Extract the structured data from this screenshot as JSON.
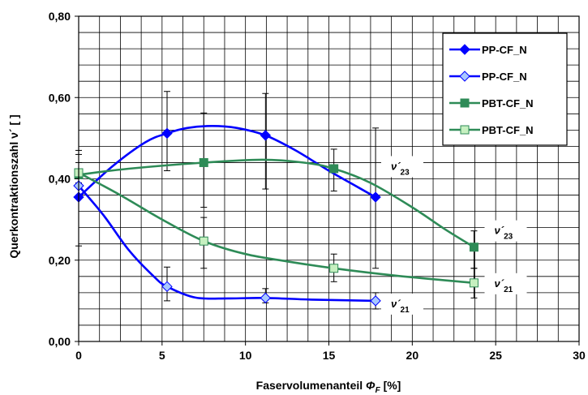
{
  "chart_data": {
    "type": "line",
    "xlabel": "Faservolumenanteil",
    "xlabel_symbol": "Φ",
    "xlabel_subscript": "F",
    "xlabel_unit": "[%]",
    "ylabel": "Querkontraktionszahl ν´ [ ]",
    "xlim": [
      0,
      30
    ],
    "ylim": [
      0,
      0.8
    ],
    "x_ticks": [
      0,
      5,
      10,
      15,
      20,
      25,
      30
    ],
    "x_tick_labels": [
      "0",
      "5",
      "10",
      "15",
      "20",
      "25",
      "30"
    ],
    "y_ticks": [
      0,
      0.2,
      0.4,
      0.6,
      0.8
    ],
    "y_tick_labels": [
      "0,00",
      "0,20",
      "0,40",
      "0,60",
      "0,80"
    ],
    "x_minor_step": 1.25,
    "y_minor_step": 0.04,
    "grid": true,
    "legend_position": "top-right",
    "series": [
      {
        "name": "PP-CF_N",
        "color": "#0000ff",
        "marker": "diamond",
        "marker_fill": "#0000ff",
        "points": [
          {
            "x": 0,
            "y": 0.355,
            "err_low": 0.235,
            "err_high": 0.47
          },
          {
            "x": 5.3,
            "y": 0.512,
            "err_low": 0.42,
            "err_high": 0.615
          },
          {
            "x": 11.2,
            "y": 0.507,
            "err_low": 0.375,
            "err_high": 0.61
          },
          {
            "x": 17.8,
            "y": 0.355,
            "err_low": 0.18,
            "err_high": 0.525
          }
        ],
        "curve": [
          [
            0,
            0.355
          ],
          [
            2,
            0.43
          ],
          [
            4,
            0.49
          ],
          [
            5.3,
            0.512
          ],
          [
            6.5,
            0.525
          ],
          [
            8,
            0.53
          ],
          [
            9.5,
            0.525
          ],
          [
            11.2,
            0.507
          ],
          [
            13,
            0.47
          ],
          [
            15,
            0.42
          ],
          [
            16.5,
            0.385
          ],
          [
            17.8,
            0.355
          ]
        ]
      },
      {
        "name": "PP-CF_N",
        "color": "#0000ff",
        "marker": "diamond",
        "marker_fill": "#a8c8ff",
        "points": [
          {
            "x": 0,
            "y": 0.383,
            "err_low": 0.36,
            "err_high": 0.405
          },
          {
            "x": 5.3,
            "y": 0.135,
            "err_low": 0.1,
            "err_high": 0.183
          },
          {
            "x": 11.2,
            "y": 0.107,
            "err_low": 0.095,
            "err_high": 0.13
          },
          {
            "x": 17.8,
            "y": 0.1,
            "err_low": 0.08,
            "err_high": 0.12
          }
        ],
        "curve": [
          [
            0,
            0.383
          ],
          [
            1.5,
            0.31
          ],
          [
            3,
            0.225
          ],
          [
            4.5,
            0.16
          ],
          [
            5.3,
            0.135
          ],
          [
            7,
            0.108
          ],
          [
            9,
            0.106
          ],
          [
            11.2,
            0.107
          ],
          [
            14,
            0.103
          ],
          [
            17.8,
            0.1
          ]
        ]
      },
      {
        "name": "PBT-CF_N",
        "color": "#2e8b57",
        "marker": "square",
        "marker_fill": "#2e8b57",
        "points": [
          {
            "x": 0,
            "y": 0.41,
            "err_low": 0.36,
            "err_high": 0.46
          },
          {
            "x": 7.5,
            "y": 0.44,
            "err_low": 0.33,
            "err_high": 0.562
          },
          {
            "x": 15.3,
            "y": 0.425,
            "err_low": 0.37,
            "err_high": 0.473
          },
          {
            "x": 23.7,
            "y": 0.232,
            "err_low": 0.18,
            "err_high": 0.272
          }
        ],
        "curve": [
          [
            0,
            0.41
          ],
          [
            3,
            0.425
          ],
          [
            7.5,
            0.44
          ],
          [
            11,
            0.447
          ],
          [
            13.5,
            0.44
          ],
          [
            15.3,
            0.425
          ],
          [
            17.5,
            0.39
          ],
          [
            20,
            0.33
          ],
          [
            22,
            0.275
          ],
          [
            23.7,
            0.232
          ]
        ]
      },
      {
        "name": "PBT-CF_N",
        "color": "#2e8b57",
        "marker": "square",
        "marker_fill": "#c6f0c0",
        "points": [
          {
            "x": 0,
            "y": 0.415,
            "err_low": 0.39,
            "err_high": 0.44
          },
          {
            "x": 7.5,
            "y": 0.247,
            "err_low": 0.18,
            "err_high": 0.305
          },
          {
            "x": 15.3,
            "y": 0.18,
            "err_low": 0.147,
            "err_high": 0.215
          },
          {
            "x": 23.7,
            "y": 0.144,
            "err_low": 0.107,
            "err_high": 0.18
          }
        ],
        "curve": [
          [
            0,
            0.415
          ],
          [
            2.5,
            0.36
          ],
          [
            5,
            0.3
          ],
          [
            7.5,
            0.247
          ],
          [
            10,
            0.215
          ],
          [
            12.5,
            0.197
          ],
          [
            15.3,
            0.18
          ],
          [
            19,
            0.162
          ],
          [
            23.7,
            0.144
          ]
        ]
      }
    ],
    "annotations": [
      {
        "symbol": "ν´",
        "sub": "23",
        "x": 19.4,
        "y": 0.43
      },
      {
        "symbol": "ν´",
        "sub": "23",
        "x": 25.6,
        "y": 0.272
      },
      {
        "symbol": "ν´",
        "sub": "21",
        "x": 25.6,
        "y": 0.142
      },
      {
        "symbol": "ν´",
        "sub": "21",
        "x": 19.4,
        "y": 0.092
      }
    ]
  }
}
